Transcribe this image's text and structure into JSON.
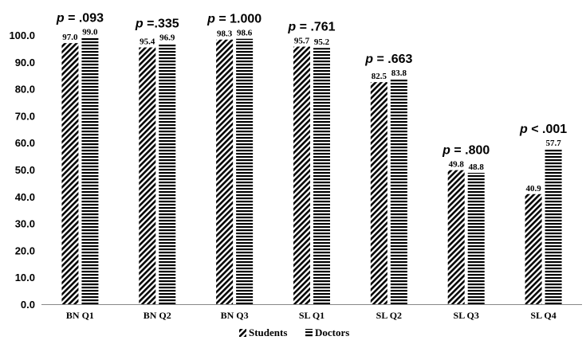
{
  "chart_data": {
    "type": "bar",
    "categories": [
      "BN Q1",
      "BN Q2",
      "BN Q3",
      "SL Q1",
      "SL Q2",
      "SL Q3",
      "SL Q4"
    ],
    "series": [
      {
        "name": "Students",
        "values": [
          97.0,
          95.4,
          98.3,
          95.7,
          82.5,
          49.8,
          40.9
        ],
        "labels": [
          "97.0",
          "95.4",
          "98.3",
          "95.7",
          "82.5",
          "49.8",
          "40.9"
        ],
        "pattern": "diagonal-hatch"
      },
      {
        "name": "Doctors",
        "values": [
          99.0,
          96.9,
          98.6,
          95.2,
          83.8,
          48.8,
          57.7
        ],
        "labels": [
          "99.0",
          "96.9",
          "98.6",
          "95.2",
          "83.8",
          "48.8",
          "57.7"
        ],
        "pattern": "horizontal-stripes"
      }
    ],
    "annotations": [
      {
        "prefix": "p",
        "text": " = .093",
        "category": "BN Q1"
      },
      {
        "prefix": "p",
        "text": " =.335",
        "category": "BN Q2"
      },
      {
        "prefix": "p",
        "text": " = 1.000",
        "category": "BN Q3"
      },
      {
        "prefix": "p",
        "text": " = .761",
        "category": "SL Q1"
      },
      {
        "prefix": "p",
        "text": " = .663",
        "category": "SL Q2"
      },
      {
        "prefix": "p",
        "text": " = .800",
        "category": "SL Q3"
      },
      {
        "prefix": "p",
        "text": " < .001",
        "category": "SL Q4"
      }
    ],
    "yticks": [
      "0.0",
      "10.0",
      "20.0",
      "30.0",
      "40.0",
      "50.0",
      "60.0",
      "70.0",
      "80.0",
      "90.0",
      "100.0"
    ],
    "ylim": [
      0,
      100
    ],
    "title": "",
    "xlabel": "",
    "ylabel": "",
    "grid": false,
    "legend": {
      "position": "bottom-center",
      "entries": [
        "Students",
        "Doctors"
      ]
    },
    "colors": {
      "ink": "#000000",
      "background": "#ffffff",
      "axis": "#888888"
    }
  }
}
